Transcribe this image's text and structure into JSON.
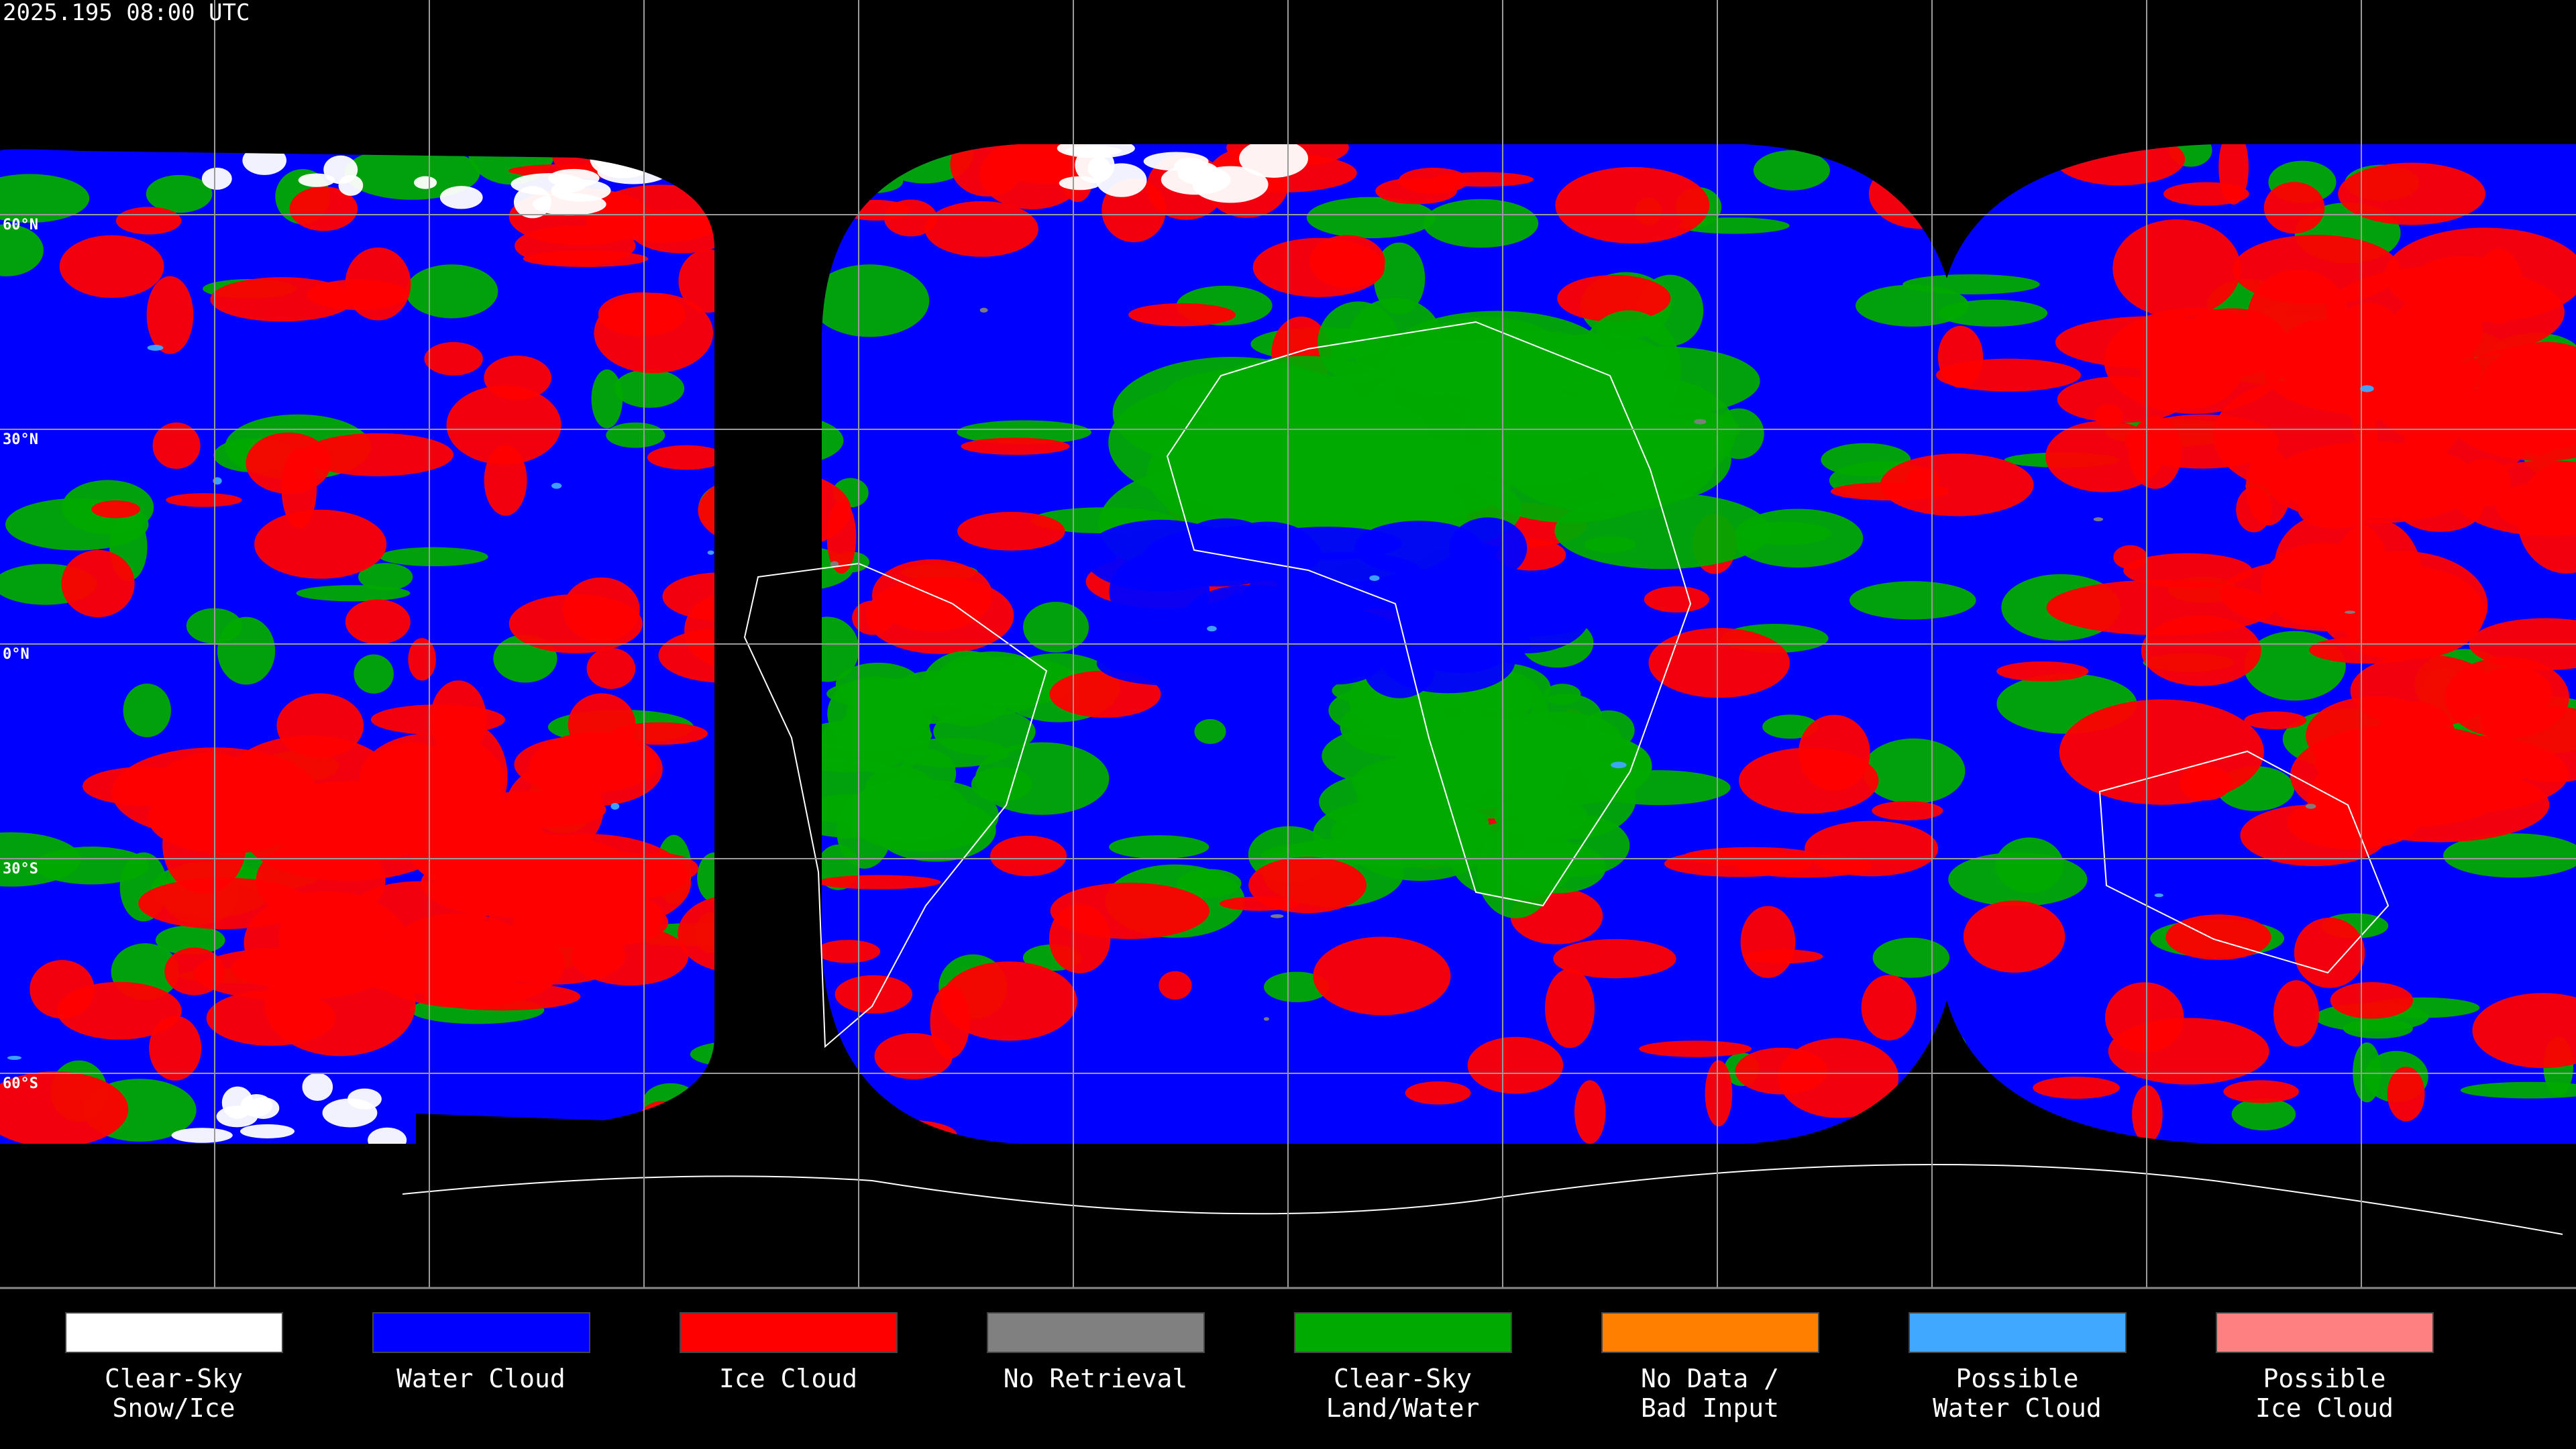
{
  "header": {
    "timestamp": "2025.195 08:00 UTC"
  },
  "map": {
    "latitude_labels": [
      "60°N",
      "30°N",
      "0°N",
      "30°S",
      "60°S"
    ]
  },
  "legend": [
    {
      "color": "#ffffff",
      "lines": [
        "Clear-Sky",
        "Snow/Ice"
      ]
    },
    {
      "color": "#0000ff",
      "lines": [
        "Water Cloud"
      ]
    },
    {
      "color": "#ff0000",
      "lines": [
        "Ice Cloud"
      ]
    },
    {
      "color": "#808080",
      "lines": [
        "No Retrieval"
      ]
    },
    {
      "color": "#00aa00",
      "lines": [
        "Clear-Sky",
        "Land/Water"
      ]
    },
    {
      "color": "#ff8000",
      "lines": [
        "No Data /",
        "Bad Input"
      ]
    },
    {
      "color": "#40a8ff",
      "lines": [
        "Possible",
        "Water Cloud"
      ]
    },
    {
      "color": "#ff8080",
      "lines": [
        "Possible",
        "Ice Cloud"
      ]
    }
  ]
}
